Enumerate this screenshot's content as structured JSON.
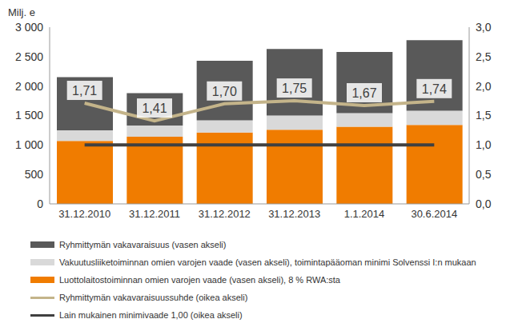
{
  "chart_data": {
    "type": "bar",
    "stacked": true,
    "grid": false,
    "legend": "bottom",
    "y_label": "Milj. e",
    "categories": [
      "31.12.2010",
      "31.12.2011",
      "31.12.2012",
      "31.12.2013",
      "1.1.2014",
      "30.6.2014"
    ],
    "ylim": [
      0,
      3000
    ],
    "yticks": [
      0,
      500,
      {
        "value": 1000,
        "label": "1 000"
      },
      {
        "value": 1500,
        "label": "1 500"
      },
      {
        "value": 2000,
        "label": "2 000"
      },
      {
        "value": 2500,
        "label": "2 500"
      },
      {
        "value": 3000,
        "label": "3 000"
      }
    ],
    "y2lim": [
      0,
      3
    ],
    "y2ticks": [
      {
        "value": 0,
        "label": "0,0"
      },
      {
        "value": 0.5,
        "label": "0,5"
      },
      {
        "value": 1,
        "label": "1,0"
      },
      {
        "value": 1.5,
        "label": "1,5"
      },
      {
        "value": 2,
        "label": "2,0"
      },
      {
        "value": 2.5,
        "label": "2,5"
      },
      {
        "value": 3,
        "label": "3,0"
      }
    ],
    "series": [
      {
        "name": "Ryhmittymän vakavaraisuus (vasen akseli)",
        "type": "bar",
        "color": "#595959",
        "values": [
          900,
          550,
          1010,
          1130,
          1040,
          1200
        ]
      },
      {
        "name": "Vakuutusliiketoiminnan omien varojen vaade (vasen akseli), toimintapääoman minimi Solvenssi I:n mukaan",
        "type": "bar",
        "color": "#d9d9d9",
        "values": [
          180,
          190,
          210,
          240,
          230,
          240
        ]
      },
      {
        "name": "Luottolaitostoiminnan omien varojen vaade (vasen akseli), 8 % RWA:sta",
        "type": "bar",
        "color": "#f07c00",
        "values": [
          1070,
          1140,
          1210,
          1260,
          1310,
          1340
        ]
      },
      {
        "name": "Ryhmittymän vakavaraisuussuhde (oikea akseli)",
        "type": "line",
        "axis": "y2",
        "color": "#c4b48a",
        "data_labels": true,
        "values": [
          1.71,
          1.41,
          1.7,
          1.75,
          1.67,
          1.74
        ],
        "value_labels": [
          "1,71",
          "1,41",
          "1,70",
          "1,75",
          "1,67",
          "1,74"
        ]
      },
      {
        "name": "Lain mukainen minimivaade 1,00 (oikea akseli)",
        "type": "line",
        "axis": "y2",
        "color": "#404040",
        "values": [
          1,
          1,
          1,
          1,
          1,
          1
        ]
      }
    ]
  }
}
